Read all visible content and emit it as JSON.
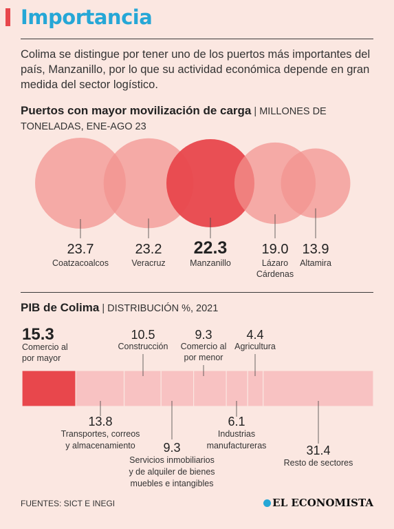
{
  "header": {
    "title": "Importancia"
  },
  "intro": "Colima se distingue por tener uno de los puertos más importantes del país, Manzanillo, por lo que su actividad económica depende en gran medida del sector logístico.",
  "colors": {
    "accent": "#e8474c",
    "title": "#26a7d6",
    "bubble": "#f2938f",
    "bubble_highlight": "#e8474c",
    "bar": "#f8c2c2",
    "background": "#fbe7e1"
  },
  "chart_data": [
    {
      "type": "bubble",
      "title": "Puertos con mayor movilización de carga",
      "unit": "MILLONES DE TONELADAS, ENE-AGO 23",
      "categories": [
        "Coatzacoalcos",
        "Veracruz",
        "Manzanillo",
        "Lázaro Cárdenas",
        "Altamira"
      ],
      "values": [
        23.7,
        23.2,
        22.3,
        19.0,
        13.9
      ],
      "value_labels": [
        "23.7",
        "23.2",
        "22.3",
        "19.0",
        "13.9"
      ],
      "label_lines": [
        [
          "Coatzacoalcos"
        ],
        [
          "Veracruz"
        ],
        [
          "Manzanillo"
        ],
        [
          "Lázaro",
          "Cárdenas"
        ],
        [
          "Altamira"
        ]
      ],
      "highlight": "Manzanillo"
    },
    {
      "type": "stacked-bar",
      "title": "PIB de Colima",
      "unit": "DISTRIBUCIÓN %, 2021",
      "categories": [
        "Comercio al por mayor",
        "Transportes, correos y almacenamiento",
        "Construcción",
        "Servicios inmobiliarios y de alquiler de bienes muebles e intangibles",
        "Comercio al por menor",
        "Industrias manufactureras",
        "Agricultura",
        "Resto de sectores"
      ],
      "values": [
        15.3,
        13.8,
        10.5,
        9.3,
        9.3,
        6.1,
        4.4,
        31.4
      ],
      "value_labels": [
        "15.3",
        "13.8",
        "10.5",
        "9.3",
        "9.3",
        "6.1",
        "4.4",
        "31.4"
      ],
      "label_lines": [
        [
          "Comercio al",
          "por mayor"
        ],
        [
          "Transportes, correos",
          "y almacenamiento"
        ],
        [
          "Construcción"
        ],
        [
          "Servicios inmobiliarios",
          "y de alquiler de bienes",
          "muebles e intangibles"
        ],
        [
          "Comercio al",
          "por menor"
        ],
        [
          "Industrias",
          "manufactureras"
        ],
        [
          "Agricultura"
        ],
        [
          "Resto de sectores"
        ]
      ],
      "label_side": [
        "top",
        "bottom",
        "top",
        "bottom",
        "top",
        "bottom",
        "top",
        "bottom"
      ],
      "highlight": "Comercio al por mayor"
    }
  ],
  "footer": {
    "source": "FUENTES: SICT E INEGI",
    "logo": "EL ECONOMISTA"
  }
}
